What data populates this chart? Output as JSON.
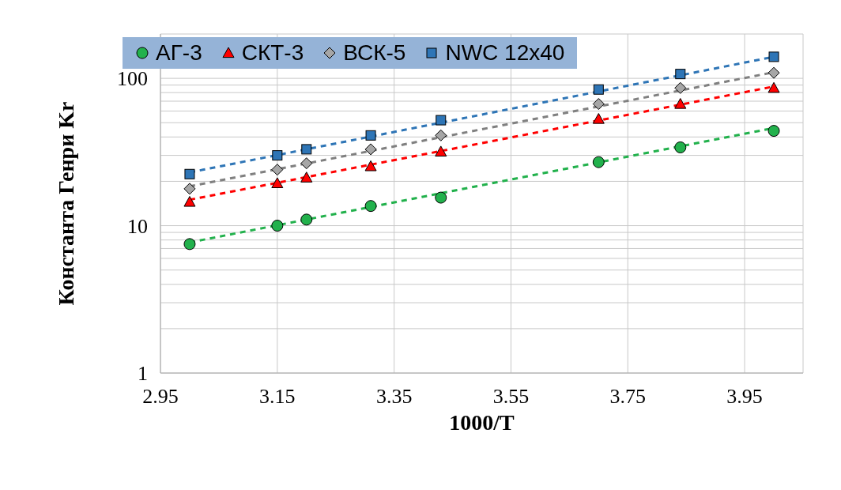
{
  "chart_data": {
    "type": "scatter",
    "xlabel": "1000/T",
    "ylabel": "Константа Генри Kr",
    "xlim": [
      2.95,
      4.05
    ],
    "xticks": [
      2.95,
      3.15,
      3.35,
      3.55,
      3.75,
      3.95
    ],
    "ylim": [
      1,
      200
    ],
    "yticks": [
      1,
      {
        "value": 2,
        "label": null
      },
      {
        "value": 3,
        "label": null
      },
      {
        "value": 4,
        "label": null
      },
      {
        "value": 5,
        "label": null
      },
      {
        "value": 6,
        "label": null
      },
      {
        "value": 7,
        "label": null
      },
      {
        "value": 8,
        "label": null
      },
      {
        "value": 9,
        "label": null
      },
      10,
      {
        "value": 20,
        "label": null
      },
      {
        "value": 30,
        "label": null
      },
      {
        "value": 40,
        "label": null
      },
      {
        "value": 50,
        "label": null
      },
      {
        "value": 60,
        "label": null
      },
      {
        "value": 70,
        "label": null
      },
      {
        "value": 80,
        "label": null
      },
      {
        "value": 90,
        "label": null
      },
      100
    ],
    "log": "y",
    "grid": true,
    "legend": "top",
    "series": [
      {
        "name": "АГ-3",
        "marker": "circle",
        "color": "#22b14c",
        "x": [
          3.0,
          3.15,
          3.2,
          3.31,
          3.43,
          3.7,
          3.84,
          4.0
        ],
        "values": [
          7.5,
          10,
          11,
          13.6,
          15.5,
          27,
          34,
          44
        ]
      },
      {
        "name": "СКТ-3",
        "marker": "triangle",
        "color": "#ff0000",
        "x": [
          3.0,
          3.15,
          3.2,
          3.31,
          3.43,
          3.7,
          3.84,
          4.0
        ],
        "values": [
          14.5,
          19.4,
          21.2,
          25.3,
          31.8,
          53,
          67,
          86
        ]
      },
      {
        "name": "ВСК-5",
        "marker": "diamond",
        "color": "#a6a6a6",
        "x": [
          3.0,
          3.15,
          3.2,
          3.31,
          3.43,
          3.7,
          3.84,
          4.0
        ],
        "values": [
          17.8,
          24,
          26.5,
          33,
          41,
          67,
          86,
          109
        ]
      },
      {
        "name": "NWC 12x40",
        "marker": "square",
        "color": "#2e75b6",
        "x": [
          3.0,
          3.15,
          3.2,
          3.31,
          3.43,
          3.7,
          3.84,
          4.0
        ],
        "values": [
          22.4,
          30,
          33,
          41,
          52,
          84,
          107,
          140
        ]
      },
      {
        "type": "line",
        "marker": "none",
        "line_style": "dashed",
        "color": "#22b14c",
        "x": [
          3.0,
          4.0
        ],
        "values": [
          7.7,
          46
        ]
      },
      {
        "type": "line",
        "marker": "none",
        "line_style": "dashed",
        "color": "#ff0000",
        "x": [
          3.0,
          4.0
        ],
        "values": [
          15,
          88
        ]
      },
      {
        "type": "line",
        "marker": "none",
        "line_style": "dashed",
        "color": "#808080",
        "x": [
          3.0,
          4.0
        ],
        "values": [
          18.5,
          110
        ]
      },
      {
        "type": "line",
        "marker": "none",
        "line_style": "dashed",
        "color": "#2e75b6",
        "x": [
          3.0,
          4.0
        ],
        "values": [
          23,
          140
        ]
      }
    ]
  }
}
